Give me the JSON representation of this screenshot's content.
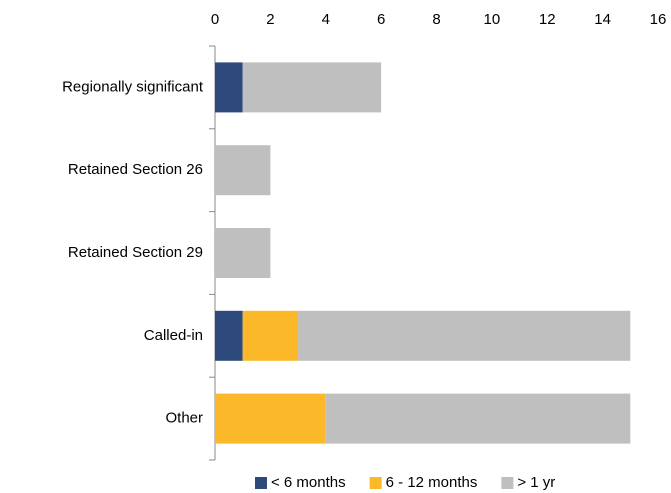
{
  "chart_data": {
    "type": "bar",
    "orientation": "horizontal",
    "stacked": true,
    "categories": [
      "Regionally significant",
      "Retained Section 26",
      "Retained Section 29",
      "Called-in",
      "Other"
    ],
    "series": [
      {
        "name": "< 6 months",
        "color": "#2e4a7d",
        "values": [
          1,
          0,
          0,
          1,
          0
        ]
      },
      {
        "name": "6 - 12 months",
        "color": "#fbb929",
        "values": [
          0,
          0,
          0,
          2,
          4
        ]
      },
      {
        "name": "> 1 yr",
        "color": "#bfbfbf",
        "values": [
          5,
          2,
          2,
          12,
          11
        ]
      }
    ],
    "xlim": [
      0,
      16
    ],
    "xticks": [
      0,
      2,
      4,
      6,
      8,
      10,
      12,
      14,
      16
    ],
    "grid": false,
    "legend": "bottom"
  }
}
